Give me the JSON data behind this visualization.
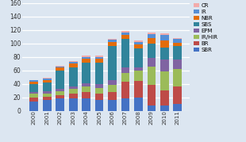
{
  "years": [
    "2000",
    "2001",
    "2002",
    "2003",
    "2004",
    "2005",
    "2006",
    "2007",
    "2008",
    "2009",
    "2010",
    "2011"
  ],
  "series": {
    "SBR": [
      14,
      16,
      18,
      18,
      18,
      16,
      16,
      18,
      20,
      8,
      8,
      10
    ],
    "BR": [
      6,
      5,
      5,
      7,
      10,
      10,
      12,
      25,
      24,
      30,
      22,
      26
    ],
    "IR/HIR": [
      5,
      5,
      6,
      7,
      8,
      8,
      10,
      13,
      15,
      28,
      28,
      26
    ],
    "EPM": [
      3,
      3,
      4,
      4,
      5,
      5,
      8,
      8,
      5,
      12,
      18,
      14
    ],
    "SBS": [
      12,
      13,
      26,
      28,
      30,
      32,
      50,
      42,
      28,
      22,
      18,
      20
    ],
    "NBR": [
      3,
      4,
      5,
      6,
      6,
      6,
      6,
      6,
      6,
      8,
      10,
      5
    ],
    "IR": [
      2,
      2,
      2,
      2,
      3,
      3,
      3,
      4,
      4,
      6,
      8,
      5
    ],
    "CR": [
      1,
      1,
      1,
      2,
      2,
      2,
      2,
      2,
      2,
      2,
      3,
      2
    ]
  },
  "colors": {
    "SBR": "#4472C4",
    "BR": "#BE4B48",
    "IR/HIR": "#9BBB59",
    "EPM": "#8064A2",
    "SBS": "#31849B",
    "NBR": "#E36C09",
    "IR": "#558ED5",
    "CR": "#F2ABAB"
  },
  "ylim": [
    0,
    160
  ],
  "yticks": [
    0,
    20,
    40,
    60,
    80,
    100,
    120,
    140,
    160
  ],
  "background_color": "#dce6f1",
  "plot_bg_color": "#dce6f1",
  "grid_color": "#ffffff"
}
